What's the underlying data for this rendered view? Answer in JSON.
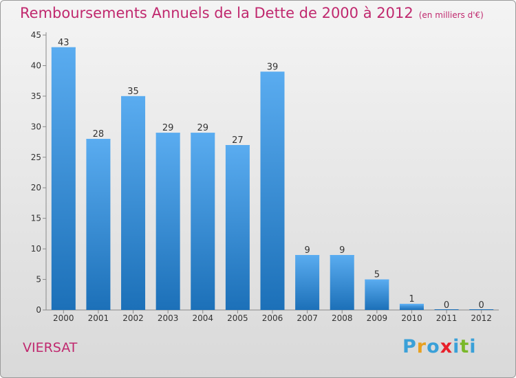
{
  "title": "Remboursements Annuels de la Dette de 2000 à 2012",
  "unit_note": "(en milliers d'€)",
  "commune": "VIERSAT",
  "brand": {
    "text": "Proxiti",
    "letter_colors": [
      "#3aa0d8",
      "#e8a020",
      "#3aa0d8",
      "#e8202a",
      "#3aa0d8",
      "#7ab82a",
      "#3aa0d8"
    ]
  },
  "colors": {
    "title": "#c0286e",
    "bar_light": "#5aacf0",
    "bar_dark": "#1c70b8"
  },
  "chart_data": {
    "type": "bar",
    "categories": [
      "2000",
      "2001",
      "2002",
      "2003",
      "2004",
      "2005",
      "2006",
      "2007",
      "2008",
      "2009",
      "2010",
      "2011",
      "2012"
    ],
    "values": [
      43,
      28,
      35,
      29,
      29,
      27,
      39,
      9,
      9,
      5,
      1,
      0,
      0
    ],
    "ylim": [
      0,
      45
    ],
    "yticks": [
      0,
      5,
      10,
      15,
      20,
      25,
      30,
      35,
      40,
      45
    ],
    "grid": false,
    "legend": "none"
  }
}
